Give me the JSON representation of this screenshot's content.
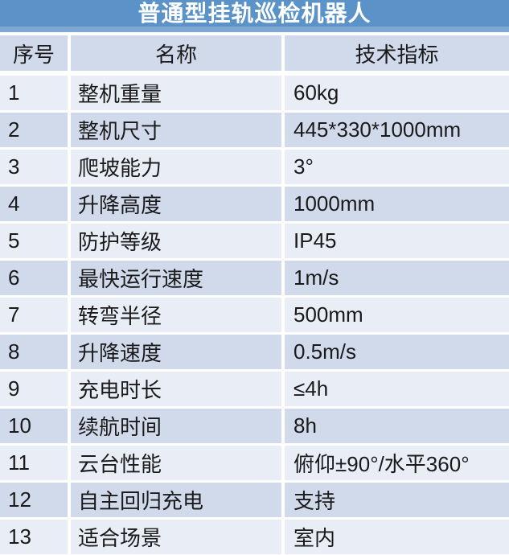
{
  "table": {
    "title": "普通型挂轨巡检机器人",
    "columns": [
      "序号",
      "名称",
      "技术指标"
    ],
    "rows": [
      {
        "no": "1",
        "name": "整机重量",
        "spec": "60kg"
      },
      {
        "no": "2",
        "name": "整机尺寸",
        "spec": "445*330*1000mm"
      },
      {
        "no": "3",
        "name": "爬坡能力",
        "spec": "3°"
      },
      {
        "no": "4",
        "name": "升降高度",
        "spec": "1000mm"
      },
      {
        "no": "5",
        "name": "防护等级",
        "spec": "IP45"
      },
      {
        "no": "6",
        "name": "最快运行速度",
        "spec": "1m/s"
      },
      {
        "no": "7",
        "name": "转弯半径",
        "spec": "500mm"
      },
      {
        "no": "8",
        "name": "升降速度",
        "spec": "0.5m/s"
      },
      {
        "no": "9",
        "name": "充电时长",
        "spec": "≤4h"
      },
      {
        "no": "10",
        "name": "续航时间",
        "spec": "8h"
      },
      {
        "no": "11",
        "name": "云台性能",
        "spec": "俯仰±90°/水平360°"
      },
      {
        "no": "12",
        "name": "自主回归充电",
        "spec": "支持"
      },
      {
        "no": "13",
        "name": "适合场景",
        "spec": "室内"
      }
    ],
    "colors": {
      "title_bg": "#5B92C8",
      "title_bg_bottom": "#7EA7D2",
      "title_text": "#FFFFFF",
      "header_bg": "#D1DAEB",
      "row_band_dark_bg": "#D1DAEB",
      "row_band_light_bg": "#E9EDF6",
      "gap": "#FFFFFF",
      "body_text": "#1A1A1A"
    }
  }
}
